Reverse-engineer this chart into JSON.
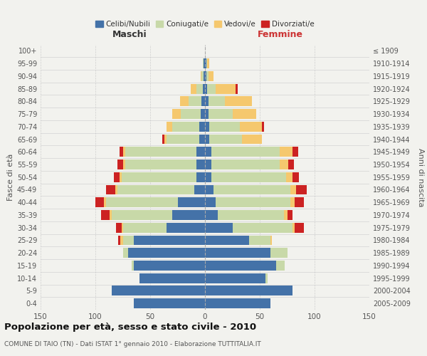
{
  "age_groups": [
    "0-4",
    "5-9",
    "10-14",
    "15-19",
    "20-24",
    "25-29",
    "30-34",
    "35-39",
    "40-44",
    "45-49",
    "50-54",
    "55-59",
    "60-64",
    "65-69",
    "70-74",
    "75-79",
    "80-84",
    "85-89",
    "90-94",
    "95-99",
    "100+"
  ],
  "birth_years": [
    "2005-2009",
    "2000-2004",
    "1995-1999",
    "1990-1994",
    "1985-1989",
    "1980-1984",
    "1975-1979",
    "1970-1974",
    "1965-1969",
    "1960-1964",
    "1955-1959",
    "1950-1954",
    "1945-1949",
    "1940-1944",
    "1935-1939",
    "1930-1934",
    "1925-1929",
    "1920-1924",
    "1915-1919",
    "1910-1914",
    "≤ 1909"
  ],
  "maschi_celibi": [
    65,
    85,
    60,
    65,
    70,
    65,
    35,
    30,
    25,
    10,
    8,
    8,
    8,
    5,
    5,
    4,
    3,
    2,
    1,
    1,
    0
  ],
  "maschi_coniugati": [
    0,
    0,
    0,
    2,
    5,
    10,
    40,
    55,
    65,
    70,
    68,
    65,
    65,
    30,
    25,
    18,
    12,
    6,
    2,
    1,
    0
  ],
  "maschi_vedovi": [
    0,
    0,
    0,
    0,
    0,
    2,
    1,
    2,
    2,
    2,
    2,
    2,
    2,
    2,
    5,
    8,
    8,
    5,
    1,
    0,
    0
  ],
  "maschi_divorziati": [
    0,
    0,
    0,
    0,
    0,
    2,
    5,
    8,
    8,
    8,
    5,
    5,
    3,
    2,
    0,
    0,
    0,
    0,
    0,
    0,
    0
  ],
  "femmine_celibi": [
    60,
    80,
    55,
    65,
    60,
    40,
    25,
    12,
    10,
    8,
    6,
    6,
    6,
    4,
    4,
    3,
    3,
    2,
    1,
    1,
    0
  ],
  "femmine_coniugati": [
    0,
    0,
    2,
    8,
    15,
    20,
    55,
    60,
    68,
    70,
    68,
    62,
    62,
    30,
    28,
    22,
    15,
    8,
    2,
    1,
    0
  ],
  "femmine_vedovi": [
    0,
    0,
    0,
    0,
    0,
    1,
    2,
    3,
    4,
    5,
    6,
    8,
    12,
    18,
    20,
    22,
    25,
    18,
    5,
    2,
    0
  ],
  "femmine_divorziati": [
    0,
    0,
    0,
    0,
    0,
    0,
    8,
    5,
    8,
    10,
    6,
    5,
    5,
    0,
    2,
    0,
    0,
    2,
    0,
    0,
    0
  ],
  "color_celibi": "#4472a8",
  "color_coniugati": "#c8d9a8",
  "color_vedovi": "#f5c86e",
  "color_divorziati": "#cc2222",
  "bg_color": "#f2f2ee",
  "grid_color": "#cccccc",
  "title": "Popolazione per età, sesso e stato civile - 2010",
  "subtitle": "COMUNE DI TAIO (TN) - Dati ISTAT 1° gennaio 2010 - Elaborazione TUTTITALIA.IT",
  "xlabel_left": "Maschi",
  "xlabel_right": "Femmine",
  "ylabel_left": "Fasce di età",
  "ylabel_right": "Anni di nascita",
  "xlim": 150,
  "legend_labels": [
    "Celibi/Nubili",
    "Coniugati/e",
    "Vedovi/e",
    "Divorziati/e"
  ]
}
